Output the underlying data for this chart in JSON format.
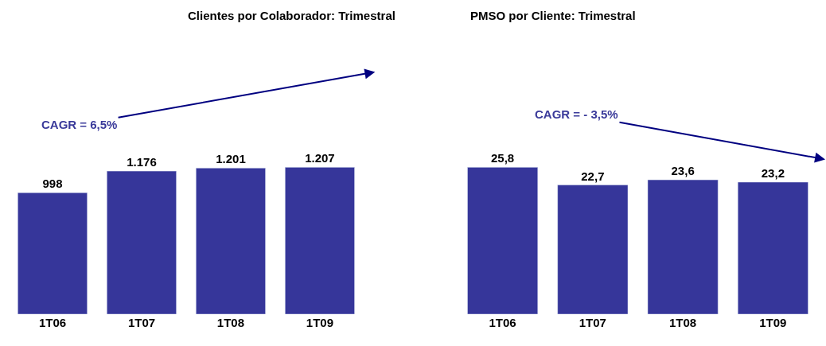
{
  "chart_data": [
    {
      "type": "bar",
      "title": "Clientes por Colaborador: Trimestral",
      "categories": [
        "1T06",
        "1T07",
        "1T08",
        "1T09"
      ],
      "values": [
        998,
        1176,
        1201,
        1207
      ],
      "value_labels": [
        "998",
        "1.176",
        "1.201",
        "1.207"
      ],
      "color": "#36369a",
      "annotations": [
        "CAGR = 6,5%"
      ]
    },
    {
      "type": "bar",
      "title": "PMSO por Cliente: Trimestral",
      "categories": [
        "1T06",
        "1T07",
        "1T08",
        "1T09"
      ],
      "values": [
        25.8,
        22.7,
        23.6,
        23.2
      ],
      "value_labels": [
        "25,8",
        "22,7",
        "23,6",
        "23,2"
      ],
      "color": "#36369a",
      "annotations": [
        "CAGR = - 3,5%"
      ]
    }
  ]
}
